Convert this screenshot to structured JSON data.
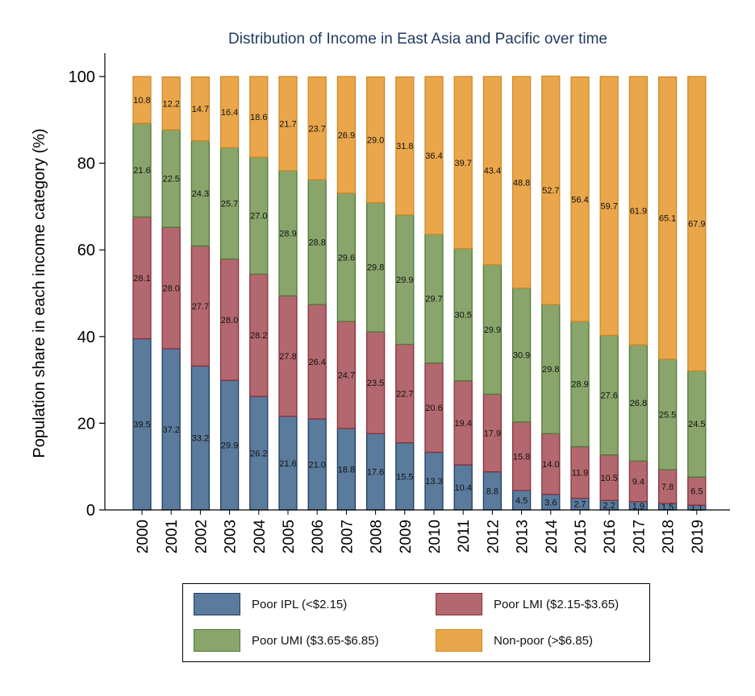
{
  "chart_data": {
    "type": "bar",
    "stacked": true,
    "title": "Distribution of Income in East Asia and Pacific over time",
    "ylabel": "Population share in each income category (%)",
    "xlabel": "",
    "ylim": [
      0,
      100
    ],
    "yticks": [
      0,
      20,
      40,
      60,
      80,
      100
    ],
    "grid": false,
    "legend_position": "bottom",
    "categories": [
      "2000",
      "2001",
      "2002",
      "2003",
      "2004",
      "2005",
      "2006",
      "2007",
      "2008",
      "2009",
      "2010",
      "2011",
      "2012",
      "2013",
      "2014",
      "2015",
      "2016",
      "2017",
      "2018",
      "2019"
    ],
    "series": [
      {
        "name": "Poor IPL (<$2.15)",
        "color": "#5b7b9d",
        "edge": "#1f3e63",
        "values": [
          39.5,
          37.2,
          33.2,
          29.9,
          26.2,
          21.6,
          21.0,
          18.8,
          17.6,
          15.5,
          13.3,
          10.4,
          8.8,
          4.5,
          3.6,
          2.7,
          2.2,
          1.9,
          1.5,
          1.1
        ]
      },
      {
        "name": "Poor LMI ($2.15-$3.65)",
        "color": "#b3686f",
        "edge": "#8a2f3c",
        "values": [
          28.1,
          28.0,
          27.7,
          28.0,
          28.2,
          27.8,
          26.4,
          24.7,
          23.5,
          22.7,
          20.6,
          19.4,
          17.9,
          15.8,
          14.0,
          11.9,
          10.5,
          9.4,
          7.8,
          6.5
        ]
      },
      {
        "name": "Poor UMI ($3.65-$6.85)",
        "color": "#8aa56c",
        "edge": "#4f7a35",
        "values": [
          21.6,
          22.5,
          24.3,
          25.7,
          27.0,
          28.9,
          28.8,
          29.6,
          29.8,
          29.9,
          29.7,
          30.5,
          29.9,
          30.9,
          29.8,
          28.9,
          27.6,
          26.8,
          25.5,
          24.5
        ]
      },
      {
        "name": "Non-poor (>$6.85)",
        "color": "#e9a64b",
        "edge": "#d08a27",
        "values": [
          10.8,
          12.2,
          14.7,
          16.4,
          18.6,
          21.7,
          23.7,
          26.9,
          29.0,
          31.8,
          36.4,
          39.7,
          43.4,
          48.8,
          52.7,
          56.4,
          59.7,
          61.9,
          65.1,
          67.9
        ]
      }
    ],
    "legend": [
      "Poor IPL (<$2.15)",
      "Poor LMI ($2.15-$3.65)",
      "Poor UMI ($3.65-$6.85)",
      "Non-poor (>$6.85)"
    ]
  }
}
